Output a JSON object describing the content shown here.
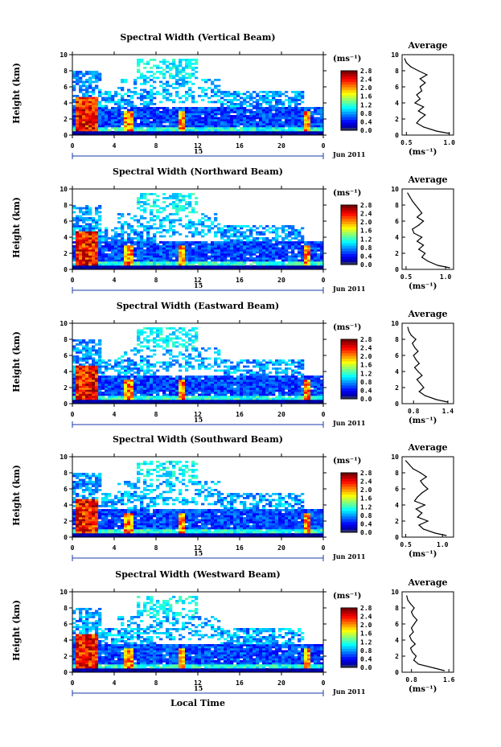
{
  "chart_data": [
    {
      "type": "heatmap",
      "title": "Spectral Width (Vertical Beam)",
      "ylabel": "Height (km)",
      "xticks": [
        "0",
        "4",
        "8",
        "12",
        "16",
        "20",
        "0"
      ],
      "yticks": [
        "0",
        "2",
        "4",
        "6",
        "8",
        "10"
      ],
      "day": "15",
      "date": "Jun 2011",
      "colorbar_unit": "(ms⁻¹)",
      "colorbar_ticks": [
        "0.0",
        "0.4",
        "0.8",
        "1.2",
        "1.6",
        "2.0",
        "2.4",
        "2.8"
      ],
      "xlim": [
        0,
        24
      ],
      "ylim": [
        0,
        10
      ],
      "clim": [
        0,
        2.8
      ],
      "average": {
        "title": "Average",
        "xticks": [
          "0.5",
          "1.0"
        ],
        "xlim": [
          0.45,
          1.05
        ],
        "xlabel": "(ms⁻¹)",
        "yticks": [
          "0",
          "2",
          "4",
          "6",
          "8",
          "10"
        ],
        "height": [
          0.2,
          0.5,
          1,
          1.5,
          2,
          2.5,
          3,
          3.5,
          4,
          4.5,
          5,
          5.5,
          6,
          6.5,
          7,
          7.5,
          8,
          8.5,
          9,
          9.5
        ],
        "value": [
          1.0,
          0.85,
          0.7,
          0.62,
          0.66,
          0.72,
          0.64,
          0.7,
          0.6,
          0.66,
          0.62,
          0.68,
          0.66,
          0.72,
          0.66,
          0.74,
          0.64,
          0.55,
          0.5,
          0.48
        ]
      }
    },
    {
      "type": "heatmap",
      "title": "Spectral Width (Northward Beam)",
      "ylabel": "Height (km)",
      "xticks": [
        "0",
        "4",
        "8",
        "12",
        "16",
        "20",
        "0"
      ],
      "yticks": [
        "0",
        "2",
        "4",
        "6",
        "8",
        "10"
      ],
      "day": "15",
      "date": "Jun 2011",
      "colorbar_unit": "(ms⁻¹)",
      "colorbar_ticks": [
        "0.0",
        "0.4",
        "0.8",
        "1.2",
        "1.6",
        "2.0",
        "2.4",
        "2.8"
      ],
      "xlim": [
        0,
        24
      ],
      "ylim": [
        0,
        10
      ],
      "clim": [
        0,
        2.8
      ],
      "average": {
        "title": "Average",
        "xticks": [
          "0.5",
          "1.0"
        ],
        "xlim": [
          0.45,
          1.1
        ],
        "xlabel": "(ms⁻¹)",
        "yticks": [
          "0",
          "2",
          "4",
          "6",
          "8",
          "10"
        ],
        "height": [
          0.2,
          0.5,
          1,
          1.5,
          2,
          2.5,
          3,
          3.5,
          4,
          4.5,
          5,
          5.5,
          6,
          6.5,
          7,
          7.5,
          8,
          8.5,
          9,
          9.5
        ],
        "value": [
          1.05,
          0.9,
          0.78,
          0.7,
          0.74,
          0.66,
          0.72,
          0.64,
          0.7,
          0.6,
          0.58,
          0.66,
          0.72,
          0.64,
          0.7,
          0.66,
          0.62,
          0.58,
          0.55,
          0.52
        ]
      }
    },
    {
      "type": "heatmap",
      "title": "Spectral Width (Eastward Beam)",
      "ylabel": "Height (km)",
      "xticks": [
        "0",
        "4",
        "8",
        "12",
        "16",
        "20",
        "0"
      ],
      "yticks": [
        "0",
        "2",
        "4",
        "6",
        "8",
        "10"
      ],
      "day": "15",
      "date": "Jun 2011",
      "colorbar_unit": "(ms⁻¹)",
      "colorbar_ticks": [
        "0.0",
        "0.4",
        "0.8",
        "1.2",
        "1.6",
        "2.0",
        "2.4",
        "2.8"
      ],
      "xlim": [
        0,
        24
      ],
      "ylim": [
        0,
        10
      ],
      "clim": [
        0,
        2.8
      ],
      "average": {
        "title": "Average",
        "xticks": [
          "0.8",
          "1.4"
        ],
        "xlim": [
          0.6,
          1.5
        ],
        "xlabel": "(ms⁻¹)",
        "yticks": [
          "0",
          "2",
          "4",
          "6",
          "8",
          "10"
        ],
        "height": [
          0.2,
          0.5,
          1,
          1.5,
          2,
          2.5,
          3,
          3.5,
          4,
          4.5,
          5,
          5.5,
          6,
          6.5,
          7,
          7.5,
          8,
          8.5,
          9,
          9.5
        ],
        "value": [
          1.4,
          1.2,
          1.0,
          0.9,
          0.98,
          0.92,
          0.86,
          0.95,
          0.88,
          0.82,
          0.9,
          0.84,
          0.8,
          0.88,
          0.82,
          0.78,
          0.84,
          0.76,
          0.72,
          0.7
        ]
      }
    },
    {
      "type": "heatmap",
      "title": "Spectral Width (Southward Beam)",
      "ylabel": "Height (km)",
      "xticks": [
        "0",
        "4",
        "8",
        "12",
        "16",
        "20",
        "0"
      ],
      "yticks": [
        "0",
        "2",
        "4",
        "6",
        "8",
        "10"
      ],
      "day": "15",
      "date": "Jun 2011",
      "colorbar_unit": "(ms⁻¹)",
      "colorbar_ticks": [
        "0.0",
        "0.4",
        "0.8",
        "1.2",
        "1.6",
        "2.0",
        "2.4",
        "2.8"
      ],
      "xlim": [
        0,
        24
      ],
      "ylim": [
        0,
        10
      ],
      "clim": [
        0,
        2.8
      ],
      "average": {
        "title": "Average",
        "xticks": [
          "0.5",
          "1.0"
        ],
        "xlim": [
          0.45,
          1.15
        ],
        "xlabel": "(ms⁻¹)",
        "yticks": [
          "0",
          "2",
          "4",
          "6",
          "8",
          "10"
        ],
        "height": [
          0.2,
          0.5,
          1,
          1.5,
          2,
          2.5,
          3,
          3.5,
          4,
          4.5,
          5,
          5.5,
          6,
          6.5,
          7,
          7.5,
          8,
          8.5,
          9,
          9.5
        ],
        "value": [
          1.05,
          0.9,
          0.74,
          0.68,
          0.8,
          0.66,
          0.72,
          0.64,
          0.76,
          0.62,
          0.66,
          0.72,
          0.8,
          0.74,
          0.7,
          0.78,
          0.7,
          0.6,
          0.55,
          0.5
        ]
      }
    },
    {
      "type": "heatmap",
      "title": "Spectral Width (Westward Beam)",
      "ylabel": "Height (km)",
      "xticks": [
        "0",
        "4",
        "8",
        "12",
        "16",
        "20",
        "0"
      ],
      "yticks": [
        "0",
        "2",
        "4",
        "6",
        "8",
        "10"
      ],
      "day": "15",
      "date": "Jun 2011",
      "colorbar_unit": "(ms⁻¹)",
      "colorbar_ticks": [
        "0.0",
        "0.4",
        "0.8",
        "1.2",
        "1.6",
        "2.0",
        "2.4",
        "2.8"
      ],
      "xlim": [
        0,
        24
      ],
      "ylim": [
        0,
        10
      ],
      "clim": [
        0,
        2.8
      ],
      "average": {
        "title": "Average",
        "xticks": [
          "0.8",
          "1.6"
        ],
        "xlim": [
          0.6,
          1.7
        ],
        "xlabel": "(ms⁻¹)",
        "yticks": [
          "0",
          "2",
          "4",
          "6",
          "8",
          "10"
        ],
        "height": [
          0.2,
          0.5,
          1,
          1.5,
          2,
          2.5,
          3,
          3.5,
          4,
          4.5,
          5,
          5.5,
          6,
          6.5,
          7,
          7.5,
          8,
          8.5,
          9,
          9.5
        ],
        "value": [
          1.5,
          1.3,
          0.95,
          0.85,
          0.9,
          0.82,
          0.78,
          0.88,
          0.8,
          0.76,
          0.84,
          0.8,
          0.86,
          0.92,
          0.84,
          0.8,
          0.86,
          0.78,
          0.72,
          0.7
        ]
      }
    }
  ],
  "xaxis_title": "Local Time"
}
